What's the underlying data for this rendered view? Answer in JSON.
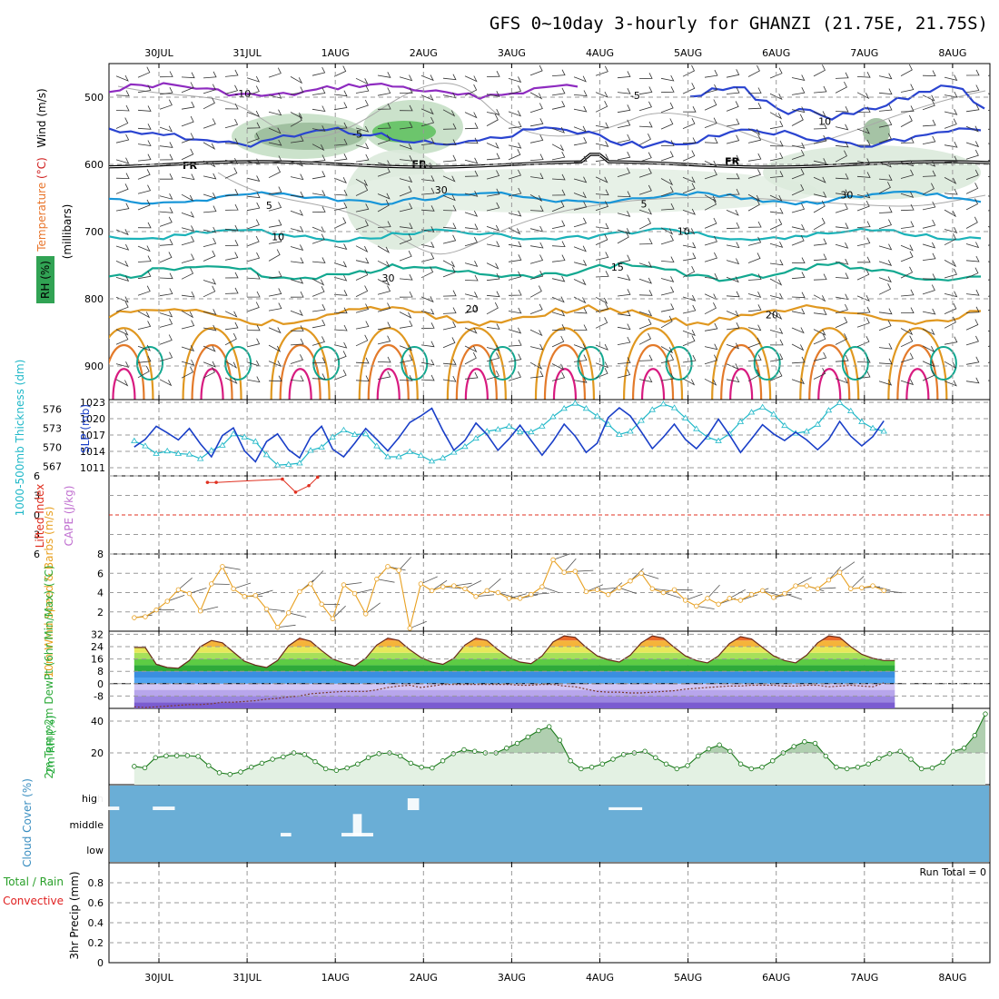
{
  "title": "GFS 0~10day 3-hourly for GHANZI (21.75E, 21.75S)",
  "colors": {
    "temperature": "#7a5cd0",
    "wind": "#2040c0",
    "rh": "#1faa3a",
    "thickness": "#20b8c8",
    "slp": "#1a3fc8",
    "cape": "#c070d0",
    "lifted": "#e03020",
    "wind10m": "#e8a020",
    "cloud": "#6aaed6",
    "precip_total": "#2aa02a",
    "precip_conv": "#e02020"
  },
  "chart_data": [
    {
      "type": "time_axis",
      "labels": [
        "30JUL",
        "31JUL",
        "1AUG",
        "2AUG",
        "3AUG",
        "4AUG",
        "5AUG",
        "6AUG",
        "7AUG",
        "8AUG"
      ]
    },
    {
      "type": "contour",
      "name": "upper_air",
      "ylabel": "(millibars)",
      "ylabel_parts": [
        "Temperature",
        "(°C)",
        "Wind",
        "(m/s)"
      ],
      "legend": "RH (%)",
      "yticks": [
        500,
        600,
        700,
        800,
        900
      ],
      "ylim": [
        950,
        450
      ],
      "temp_labels": [
        {
          "text": "-10",
          "day": 1.95,
          "p": 500
        },
        {
          "text": "-5",
          "day": 3.25,
          "p": 560
        },
        {
          "text": "-5",
          "day": 6.4,
          "p": 503
        },
        {
          "text": "5",
          "day": 2.25,
          "p": 666
        },
        {
          "text": "5",
          "day": 6.5,
          "p": 664
        },
        {
          "text": "10",
          "day": 2.35,
          "p": 713
        },
        {
          "text": "10",
          "day": 6.95,
          "p": 705
        },
        {
          "text": "15",
          "day": 6.2,
          "p": 758
        },
        {
          "text": "20",
          "day": 4.55,
          "p": 820
        },
        {
          "text": "20",
          "day": 7.95,
          "p": 829
        }
      ],
      "fr_labels": [
        {
          "day": 1.35,
          "p": 600
        },
        {
          "day": 3.95,
          "p": 598
        },
        {
          "day": 7.5,
          "p": 594
        }
      ],
      "rh_labels": [
        {
          "text": "30",
          "day": 4.2,
          "p": 643
        },
        {
          "text": "30",
          "day": 3.6,
          "p": 774
        },
        {
          "text": "30",
          "day": 8.8,
          "p": 651
        },
        {
          "text": "10",
          "day": 8.55,
          "p": 541
        }
      ]
    },
    {
      "type": "line",
      "name": "slp_thickness",
      "ylabel_left": "1000-500mb Thickness (dm)",
      "ylabel_right": "SLP (mb)",
      "yticks_left": [
        567,
        570,
        573,
        576
      ],
      "yticks_right": [
        1011,
        1014,
        1017,
        1020,
        1023
      ],
      "ylim_left": [
        565.5,
        577.5
      ],
      "ylim_right": [
        1009.5,
        1023.5
      ],
      "series": [
        {
          "name": "SLP",
          "values": [
            1014.8,
            1016.2,
            1018.6,
            1017.4,
            1016.1,
            1018.2,
            1015.4,
            1013.0,
            1016.9,
            1018.3,
            1014.1,
            1012.1,
            1015.8,
            1017.2,
            1014.3,
            1012.8,
            1016.6,
            1018.6,
            1014.4,
            1013.0,
            1015.5,
            1018.2,
            1016.2,
            1014.1,
            1016.5,
            1019.3,
            1020.5,
            1021.9,
            1017.8,
            1014.2,
            1016.0,
            1019.2,
            1017.1,
            1014.2,
            1016.3,
            1018.8,
            1016.0,
            1013.3,
            1015.9,
            1019.0,
            1016.8,
            1013.8,
            1015.5,
            1020.2,
            1022.0,
            1020.5,
            1017.6,
            1014.5,
            1016.6,
            1019.0,
            1016.2,
            1014.5,
            1016.8,
            1019.9,
            1017.0,
            1013.8,
            1016.3,
            1018.9,
            1017.2,
            1016.0,
            1017.5,
            1016.1,
            1014.3,
            1016.2,
            1019.5,
            1016.8,
            1015.0,
            1016.7,
            1019.6
          ]
        },
        {
          "name": "Thickness",
          "values": [
            571.0,
            570.2,
            569.0,
            569.4,
            569.0,
            568.9,
            568.2,
            569.5,
            570.3,
            572.1,
            571.6,
            570.9,
            568.8,
            567.2,
            567.3,
            567.5,
            569.5,
            570.0,
            571.6,
            572.7,
            572.0,
            572.1,
            570.2,
            568.5,
            568.5,
            569.3,
            568.7,
            567.8,
            568.3,
            569.2,
            570.1,
            571.4,
            572.5,
            572.8,
            573.3,
            572.4,
            572.4,
            573.3,
            574.8,
            576.1,
            576.9,
            576.1,
            574.9,
            573.6,
            572.0,
            572.5,
            574.2,
            575.9,
            576.8,
            576.2,
            574.6,
            572.9,
            571.6,
            571.0,
            572.1,
            574.0,
            575.5,
            576.3,
            575.2,
            573.4,
            572.2,
            572.5,
            573.6,
            575.8,
            577.0,
            575.7,
            574.0,
            573.0,
            572.5
          ]
        }
      ]
    },
    {
      "type": "line",
      "name": "stability",
      "ylabel": "Lifted Index",
      "ylabel_cape": "CAPE (J/kg)",
      "yticks": [
        6,
        3,
        0,
        -3,
        -6
      ],
      "ylim": [
        6,
        -6
      ],
      "series": [
        {
          "name": "Lifted Index",
          "points": [
            {
              "day": 1.55,
              "v": 5.0
            },
            {
              "day": 1.65,
              "v": 5.0
            },
            {
              "day": 2.4,
              "v": 5.5
            },
            {
              "day": 2.55,
              "v": 3.5
            },
            {
              "day": 2.7,
              "v": 4.5
            },
            {
              "day": 2.8,
              "v": 5.8
            }
          ]
        }
      ]
    },
    {
      "type": "line",
      "name": "wind10m",
      "ylabel": "10m Wind Speed & Barbs (m/s)",
      "yticks": [
        2,
        4,
        6,
        8
      ],
      "ylim": [
        0,
        8
      ],
      "series": [
        {
          "name": "Speed",
          "values": [
            1.4,
            1.5,
            2.2,
            3.1,
            4.3,
            3.9,
            2.1,
            4.9,
            6.7,
            4.4,
            3.6,
            3.7,
            2.3,
            0.4,
            1.9,
            4.1,
            4.9,
            2.8,
            1.3,
            4.8,
            3.9,
            1.8,
            5.4,
            6.7,
            6.3,
            0.3,
            4.9,
            4.2,
            4.6,
            4.7,
            4.4,
            3.6,
            4.2,
            4.0,
            3.4,
            3.4,
            3.8,
            4.6,
            7.4,
            6.1,
            6.2,
            4.1,
            4.3,
            3.8,
            4.5,
            5.2,
            6.0,
            4.4,
            4.0,
            4.3,
            3.2,
            2.6,
            3.4,
            2.8,
            3.4,
            3.2,
            3.8,
            4.2,
            3.5,
            3.9,
            4.7,
            4.7,
            4.4,
            5.3,
            6.1,
            4.4,
            4.5,
            4.7,
            4.2
          ]
        }
      ]
    },
    {
      "type": "area",
      "name": "temperature2m",
      "ylabel": "2m Temp 2m DewPt (6hr Min/Max) (°C)",
      "yticks": [
        32,
        24,
        16,
        8,
        0,
        -8
      ],
      "ylim": [
        -16,
        34
      ],
      "series": [
        {
          "name": "2m Temp",
          "values": [
            23.5,
            23.5,
            12.5,
            10.5,
            10.0,
            15.0,
            24.0,
            28.0,
            26.5,
            20.5,
            14.5,
            12.0,
            10.5,
            15.0,
            24.5,
            29.5,
            27.5,
            21.5,
            16.0,
            13.5,
            11.5,
            16.5,
            25.0,
            29.5,
            28.0,
            22.0,
            17.0,
            14.0,
            12.5,
            16.5,
            25.0,
            29.5,
            28.0,
            22.0,
            17.0,
            14.0,
            13.0,
            18.0,
            27.0,
            31.0,
            30.0,
            23.5,
            18.0,
            15.5,
            14.0,
            18.5,
            26.5,
            31.0,
            29.5,
            23.5,
            18.0,
            15.0,
            13.5,
            18.0,
            26.0,
            30.5,
            29.0,
            23.5,
            18.0,
            15.0,
            13.5,
            18.5,
            26.5,
            31.0,
            30.0,
            24.0,
            19.0,
            16.5,
            15.0,
            15.0
          ]
        },
        {
          "name": "2m DewPt",
          "values": [
            -15.0,
            -15.5,
            -15.0,
            -14.5,
            -14.0,
            -13.5,
            -13.5,
            -13.0,
            -12.0,
            -12.0,
            -11.5,
            -11.0,
            -10.0,
            -9.5,
            -8.5,
            -8.0,
            -6.5,
            -6.0,
            -5.5,
            -5.0,
            -5.0,
            -5.0,
            -4.0,
            -2.5,
            -1.5,
            -1.0,
            -2.5,
            -1.5,
            -0.5,
            -0.5,
            -0.5,
            -0.5,
            -0.5,
            -0.5,
            -0.5,
            -1.0,
            -1.0,
            -0.5,
            -0.5,
            -1.5,
            -2.0,
            -3.5,
            -5.0,
            -5.5,
            -5.5,
            -6.0,
            -6.0,
            -5.5,
            -5.0,
            -4.5,
            -3.5,
            -3.0,
            -2.5,
            -2.0,
            -1.5,
            -1.5,
            -1.0,
            -1.0,
            -1.0,
            -1.5,
            -1.5,
            -1.0,
            -1.0,
            -2.0,
            -1.5,
            -1.0,
            -1.5,
            -2.0,
            0.5
          ]
        }
      ]
    },
    {
      "type": "area",
      "name": "rh2m",
      "ylabel": "2m RH (%)",
      "yticks": [
        20,
        40
      ],
      "ylim": [
        0,
        48
      ],
      "series": [
        {
          "name": "2m RH",
          "values": [
            11.5,
            10.6,
            17.0,
            18.1,
            18.2,
            18.3,
            17.8,
            12.0,
            7.5,
            6.5,
            8.0,
            11.0,
            13.5,
            16.0,
            17.5,
            20.0,
            19.0,
            14.5,
            10.0,
            9.0,
            10.5,
            13.0,
            17.0,
            19.5,
            20.0,
            18.0,
            13.5,
            11.0,
            10.5,
            15.0,
            19.5,
            22.0,
            21.0,
            20.0,
            20.0,
            23.0,
            26.0,
            30.0,
            34.0,
            36.5,
            28.0,
            15.0,
            10.0,
            11.0,
            13.0,
            16.0,
            19.0,
            20.0,
            21.0,
            17.0,
            13.0,
            10.0,
            12.0,
            18.0,
            22.5,
            25.0,
            21.0,
            13.0,
            10.0,
            11.0,
            15.0,
            20.0,
            24.0,
            27.0,
            26.0,
            18.0,
            11.0,
            10.0,
            11.0,
            13.0,
            16.5,
            19.5,
            21.0,
            16.0,
            10.0,
            10.5,
            14.0,
            21.0,
            23.0,
            31.0,
            44.5
          ]
        }
      ]
    },
    {
      "type": "bar",
      "name": "cloud_cover",
      "ylabel": "Cloud Cover (%)",
      "categories": [
        "high",
        "middle",
        "low"
      ],
      "bars": [
        {
          "level": "high",
          "day": 0.05,
          "width": 0.5,
          "amount": 0.15
        },
        {
          "level": "high",
          "day": 0.3,
          "width": 0.1,
          "amount": 1.0
        },
        {
          "level": "high",
          "day": 0.93,
          "width": 0.25,
          "amount": 0.15
        },
        {
          "level": "high",
          "day": 3.82,
          "width": 0.13,
          "amount": 0.5
        },
        {
          "level": "high",
          "day": 6.1,
          "width": 0.38,
          "amount": 0.12
        },
        {
          "level": "middle",
          "day": 3.07,
          "width": 0.36,
          "amount": 0.15
        },
        {
          "level": "middle",
          "day": 3.2,
          "width": 0.1,
          "amount": 0.95
        },
        {
          "level": "middle",
          "day": 2.38,
          "width": 0.12,
          "amount": 0.15
        }
      ]
    },
    {
      "type": "bar",
      "name": "precipitation",
      "ylabel": "3hr Precip (mm)",
      "legend": [
        "Total / Rain",
        "Convective"
      ],
      "annotation": "Run Total = 0",
      "yticks": [
        0,
        0.2,
        0.4,
        0.6,
        0.8
      ],
      "ylim": [
        0,
        1
      ],
      "values": []
    }
  ]
}
